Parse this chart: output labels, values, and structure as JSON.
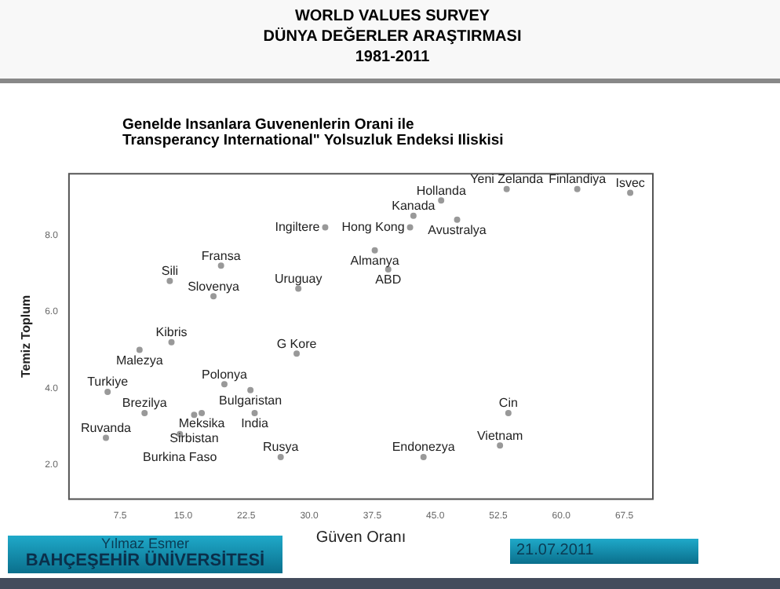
{
  "chart_data": {
    "type": "scatter",
    "title": "Genelde Insanlara Guvenenlerin Orani ile\nTransperancy International\" Yolsuzluk Endeksi Iliskisi",
    "xlabel": "Güven Oranı",
    "ylabel": "Temiz Toplum",
    "x": [
      68.2,
      61.9,
      53.5,
      45.7,
      42.4,
      47.6,
      42.0,
      31.9,
      37.8,
      39.4,
      19.5,
      13.4,
      18.6,
      28.7,
      13.6,
      9.8,
      28.5,
      6.0,
      19.9,
      23.0,
      10.4,
      17.2,
      16.3,
      23.5,
      5.8,
      14.6,
      26.6,
      43.6,
      52.7,
      53.7
    ],
    "series": [
      {
        "color": "#999999",
        "values": [
          9.1,
          9.2,
          9.2,
          8.9,
          8.5,
          8.4,
          8.2,
          8.2,
          7.6,
          7.1,
          7.2,
          6.8,
          6.4,
          6.6,
          5.2,
          5.0,
          4.9,
          3.9,
          4.1,
          3.95,
          3.35,
          3.35,
          3.3,
          3.35,
          2.7,
          2.8,
          2.2,
          2.2,
          2.5,
          3.35
        ]
      }
    ],
    "xlim": [
      1.4,
      70.9
    ],
    "ylim": [
      1.1,
      9.6
    ],
    "xticks": [
      7.5,
      {
        "value": 15,
        "label": "15.0"
      },
      22.5,
      {
        "value": 30,
        "label": "30.0"
      },
      37.5,
      {
        "value": 45,
        "label": "45.0"
      },
      52.5,
      {
        "value": 60,
        "label": "60.0"
      },
      67.5
    ],
    "yticks": [
      {
        "value": 2,
        "label": "2.0"
      },
      {
        "value": 4,
        "label": "4.0"
      },
      {
        "value": 6,
        "label": "6.0"
      },
      {
        "value": 8,
        "label": "8.0"
      }
    ],
    "grid": false,
    "legend": false,
    "marker": "circle",
    "annotations": [
      "WORLD VALUES SURVEY",
      "DÜNYA DEĞERLER ARAŞTIRMASI",
      "1981-2011",
      "Yılmaz Esmer",
      "BAHÇEŞEHİR ÜNİVERSİTESİ",
      "21.07.2011",
      {
        "text": "Isvec",
        "x": 68.2,
        "y": 9.1
      },
      {
        "text": "Finlandiya",
        "x": 61.9,
        "y": 9.2
      },
      {
        "text": "Yeni Zelanda",
        "x": 53.5,
        "y": 9.2
      },
      {
        "text": "Hollanda",
        "x": 45.7,
        "y": 8.9
      },
      {
        "text": "Kanada",
        "x": 42.4,
        "y": 8.5
      },
      {
        "text": "Avustralya",
        "x": 47.6,
        "y": 8.4
      },
      {
        "text": "Hong Kong",
        "x": 42.0,
        "y": 8.2
      },
      {
        "text": "Ingiltere",
        "x": 31.9,
        "y": 8.2
      },
      {
        "text": "Almanya",
        "x": 37.8,
        "y": 7.6
      },
      {
        "text": "ABD",
        "x": 39.4,
        "y": 7.1
      },
      {
        "text": "Fransa",
        "x": 19.5,
        "y": 7.2
      },
      {
        "text": "Sili",
        "x": 13.4,
        "y": 6.8
      },
      {
        "text": "Slovenya",
        "x": 18.6,
        "y": 6.4
      },
      {
        "text": "Uruguay",
        "x": 28.7,
        "y": 6.6
      },
      {
        "text": "Kibris",
        "x": 13.6,
        "y": 5.2
      },
      {
        "text": "Malezya",
        "x": 9.8,
        "y": 5.0
      },
      {
        "text": "G Kore",
        "x": 28.5,
        "y": 4.9
      },
      {
        "text": "Turkiye",
        "x": 6.0,
        "y": 3.9
      },
      {
        "text": "Polonya",
        "x": 19.9,
        "y": 4.1
      },
      {
        "text": "Bulgaristan",
        "x": 23.0,
        "y": 3.95
      },
      {
        "text": "Brezilya",
        "x": 10.4,
        "y": 3.35
      },
      {
        "text": "Meksika",
        "x": 17.2,
        "y": 3.35
      },
      {
        "text": "Sirbistan",
        "x": 16.3,
        "y": 3.3
      },
      {
        "text": "India",
        "x": 23.5,
        "y": 3.35
      },
      {
        "text": "Ruvanda",
        "x": 5.8,
        "y": 2.7
      },
      {
        "text": "Burkina Faso",
        "x": 14.6,
        "y": 2.8
      },
      {
        "text": "Rusya",
        "x": 26.6,
        "y": 2.2
      },
      {
        "text": "Endonezya",
        "x": 43.6,
        "y": 2.2
      },
      {
        "text": "Vietnam",
        "x": 52.7,
        "y": 2.5
      },
      {
        "text": "Cin",
        "x": 53.7,
        "y": 3.35
      }
    ]
  }
}
